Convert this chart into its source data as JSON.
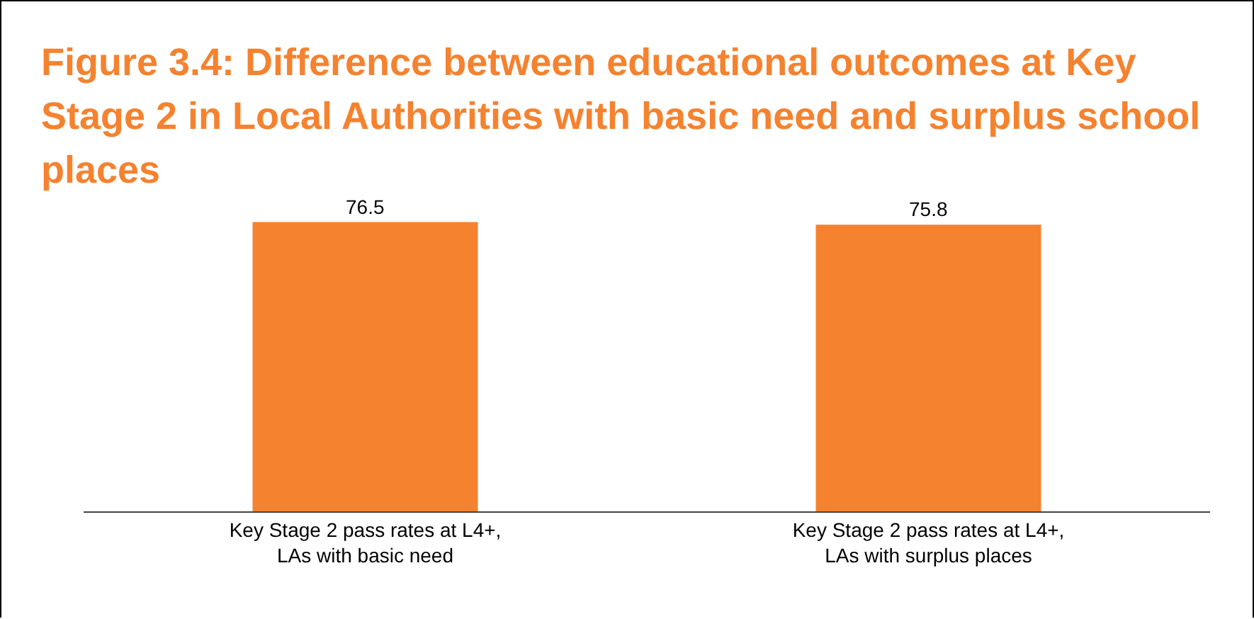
{
  "chart_data": {
    "type": "bar",
    "title": "Figure 3.4: Difference between educational outcomes at Key Stage 2 in Local Authorities with basic need and surplus school places",
    "categories": [
      "Key Stage 2 pass rates at L4+,\nLAs with basic need",
      "Key Stage 2 pass rates at L4+,\nLAs with surplus places"
    ],
    "values": [
      76.5,
      75.8
    ],
    "color": "#f5822f",
    "data_labels": true,
    "tick_labels": "x"
  }
}
